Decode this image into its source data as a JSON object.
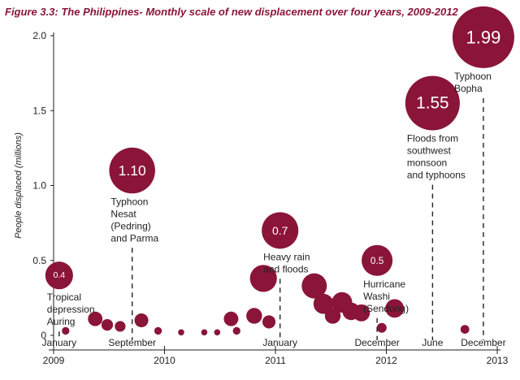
{
  "chart_data": {
    "type": "scatter",
    "title": "Figure 3.3: The Philippines- Monthly scale of new displacement over four years, 2009-2012",
    "ylabel": "People displaced (millions)",
    "xlabel": "",
    "ylim": [
      0,
      2.0
    ],
    "xlim": [
      0,
      48
    ],
    "yticks": [
      "0",
      "0.5",
      "1.0",
      "1.5",
      "2.0"
    ],
    "year_labels": [
      {
        "label": "2009",
        "x": 0
      },
      {
        "label": "2010",
        "x": 12
      },
      {
        "label": "2011",
        "x": 24
      },
      {
        "label": "2012",
        "x": 36
      },
      {
        "label": "2013",
        "x": 48
      }
    ],
    "month_labels": [
      {
        "label": "January",
        "x": 0.6
      },
      {
        "label": "September",
        "x": 8.5
      },
      {
        "label": "January",
        "x": 24.5
      },
      {
        "label": "December",
        "x": 35
      },
      {
        "label": "June",
        "x": 41
      },
      {
        "label": "December",
        "x": 46.5
      }
    ],
    "points": [
      {
        "x": 1.3,
        "value": 0.03
      },
      {
        "x": 4.5,
        "value": 0.11
      },
      {
        "x": 5.8,
        "value": 0.07
      },
      {
        "x": 7.2,
        "value": 0.06
      },
      {
        "x": 9.5,
        "value": 0.1
      },
      {
        "x": 11.3,
        "value": 0.03
      },
      {
        "x": 13.8,
        "value": 0.02
      },
      {
        "x": 16.3,
        "value": 0.02
      },
      {
        "x": 17.7,
        "value": 0.02
      },
      {
        "x": 19.2,
        "value": 0.11
      },
      {
        "x": 19.8,
        "value": 0.03
      },
      {
        "x": 21.7,
        "value": 0.13
      },
      {
        "x": 22.7,
        "value": 0.38
      },
      {
        "x": 23.3,
        "value": 0.09
      },
      {
        "x": 28.2,
        "value": 0.33
      },
      {
        "x": 29.2,
        "value": 0.21
      },
      {
        "x": 30.2,
        "value": 0.13
      },
      {
        "x": 31.2,
        "value": 0.22
      },
      {
        "x": 32.2,
        "value": 0.16
      },
      {
        "x": 33.3,
        "value": 0.15
      },
      {
        "x": 36.9,
        "value": 0.18
      },
      {
        "x": 35.5,
        "value": 0.05
      },
      {
        "x": 44.5,
        "value": 0.04
      }
    ],
    "annotations": [
      {
        "value_label": "0.4",
        "text": [
          "Tropical",
          "depression",
          "Auring"
        ],
        "x": 0.6,
        "value": 0.4,
        "line_x": 0.6,
        "line_top": 0.05,
        "align": "start"
      },
      {
        "value_label": "1.10",
        "text": [
          "Typhoon",
          "Nesat",
          "(Pedring)",
          "and Parma"
        ],
        "x": 8.5,
        "value": 1.1,
        "line_x": 8.5,
        "line_top": 0.55,
        "align": "start"
      },
      {
        "value_label": "0.7",
        "text": [
          "Heavy rain",
          "and floods"
        ],
        "x": 24.5,
        "value": 0.7,
        "line_x": 24.5,
        "line_top": 0.38,
        "align": "start"
      },
      {
        "value_label": "0.5",
        "text": [
          "Hurricane",
          "Washi",
          "(Sendong)"
        ],
        "x": 35,
        "value": 0.5,
        "line_x": 35,
        "line_top": 0.18,
        "align": "start"
      },
      {
        "value_label": "1.55",
        "text": [
          "Floods from",
          "southwest",
          "monsoon",
          "and typhoons"
        ],
        "x": 41,
        "value": 1.55,
        "line_x": 41,
        "line_top": 0.98,
        "align": "start"
      },
      {
        "value_label": "1.99",
        "text": [
          "Typhoon",
          "Bopha"
        ],
        "x": 46.5,
        "value": 1.99,
        "line_x": 46.5,
        "line_top": 1.58,
        "align": "start"
      }
    ],
    "colors": {
      "bubble": "#8a1538",
      "title": "#8a1538",
      "axis": "#222222"
    }
  }
}
